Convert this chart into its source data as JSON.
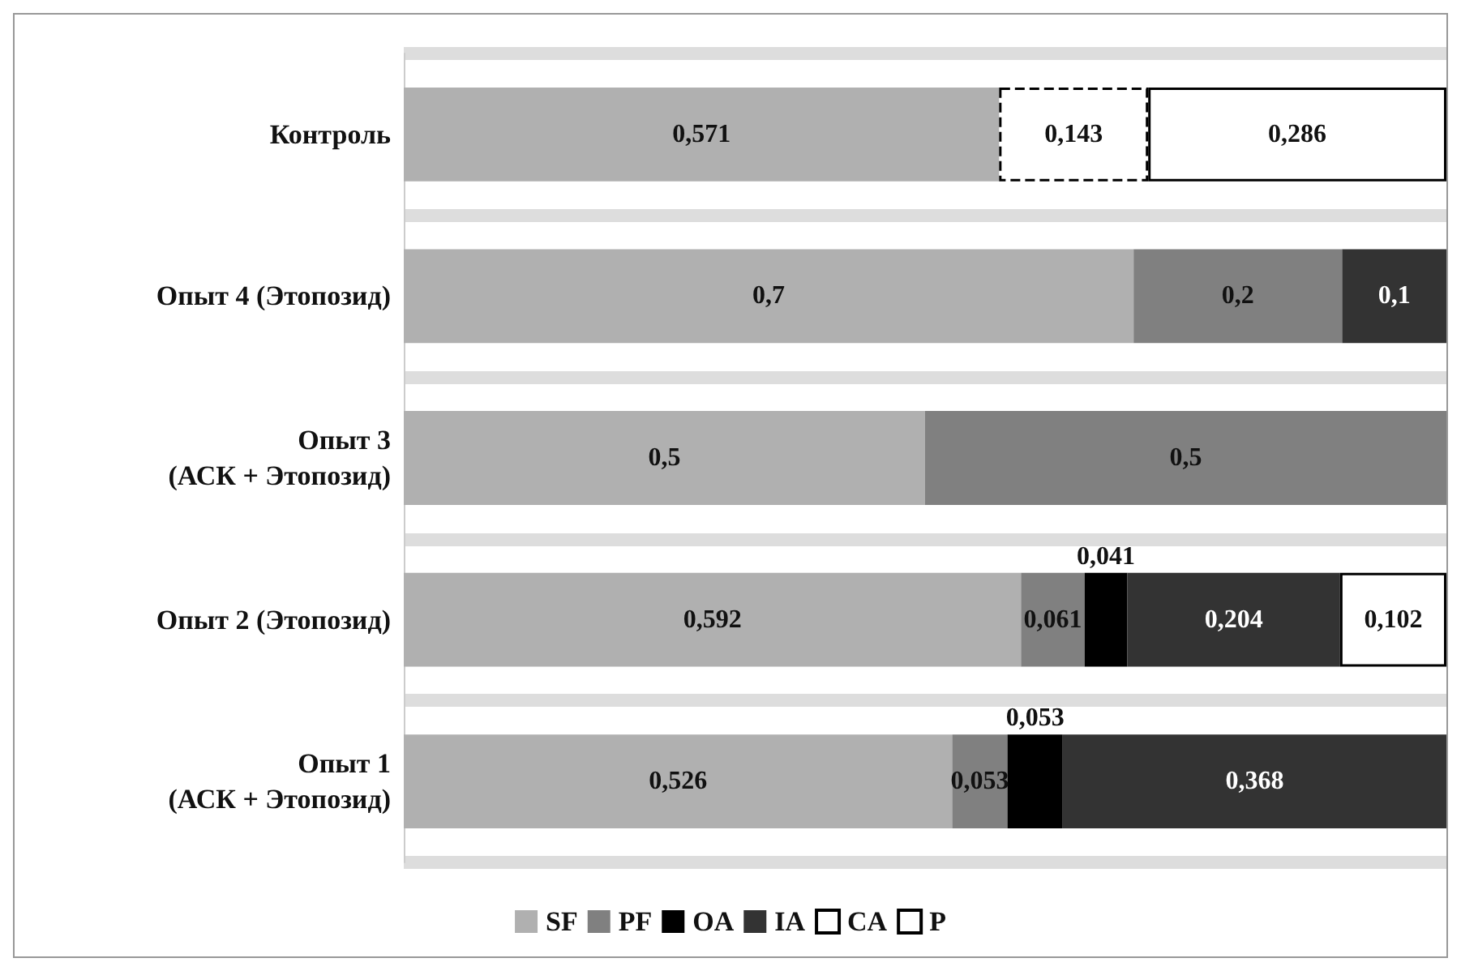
{
  "chart_data": {
    "type": "bar",
    "orientation": "horizontal",
    "stacked": true,
    "tick_labels": "y",
    "grid": "y",
    "legend": "bottom",
    "categories": [
      "Контроль",
      "Опыт 4 (Этопозид)",
      "Опыт 3\n(АСК + Этопозид)",
      "Опыт 2 (Этопозид)",
      "Опыт 1\n(АСК + Этопозид)"
    ],
    "series": [
      {
        "name": "SF",
        "color": "#b0b0b0",
        "values": [
          0.571,
          0.7,
          0.5,
          0.592,
          0.526
        ],
        "value_labels": [
          "0,571",
          "0,7",
          "0,5",
          "0,592",
          "0,526"
        ]
      },
      {
        "name": "PF",
        "color": "#808080",
        "values": [
          null,
          0.2,
          0.5,
          0.061,
          0.053
        ],
        "value_labels": [
          null,
          "0,2",
          "0,5",
          "0,061",
          "0,053"
        ]
      },
      {
        "name": "OA",
        "color": "#000000",
        "values": [
          null,
          null,
          null,
          0.041,
          0.053
        ],
        "value_labels": [
          null,
          null,
          null,
          "0,041",
          "0,053"
        ]
      },
      {
        "name": "IA",
        "color": "#333333",
        "values": [
          null,
          0.1,
          null,
          0.204,
          0.368
        ],
        "value_labels": [
          null,
          "0,1",
          null,
          "0,204",
          "0,368"
        ]
      },
      {
        "name": "CA",
        "color": "#ffffff",
        "line_style": "dashed",
        "values": [
          0.143,
          null,
          null,
          null,
          null
        ],
        "value_labels": [
          "0,143",
          null,
          null,
          null,
          null
        ]
      },
      {
        "name": "P",
        "color": "#ffffff",
        "line_style": "solid",
        "values": [
          0.286,
          null,
          null,
          0.102,
          null
        ],
        "value_labels": [
          "0,286",
          null,
          null,
          "0,102",
          null
        ]
      }
    ]
  }
}
